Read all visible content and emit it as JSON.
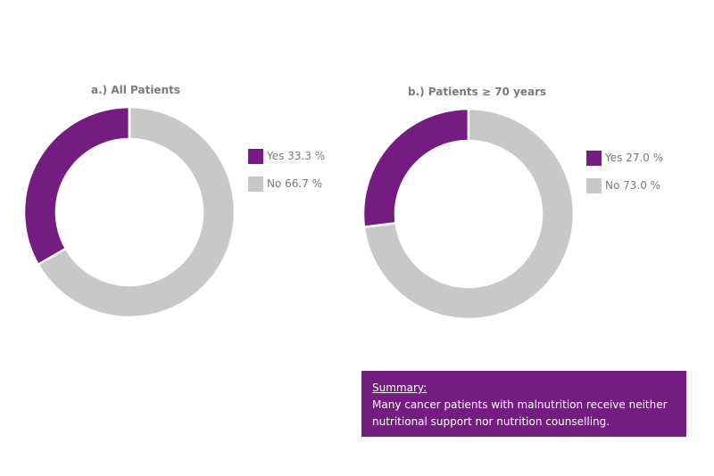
{
  "colors": {
    "yes": "#741c82",
    "no": "#c8c8c8",
    "text": "#7a7a7a"
  },
  "chart_data": [
    {
      "type": "pie",
      "title": "a.) All Patients",
      "categories": [
        "Yes",
        "No"
      ],
      "values": [
        33.3,
        66.7
      ],
      "legend": [
        "Yes 33.3 %",
        "No 66.7 %"
      ],
      "legend_position": "right"
    },
    {
      "type": "pie",
      "title": "b.) Patients ≥ 70 years",
      "categories": [
        "Yes",
        "No"
      ],
      "values": [
        27.0,
        73.0
      ],
      "legend": [
        "Yes 27.0 %",
        "No 73.0 %"
      ],
      "legend_position": "right"
    }
  ],
  "summary": {
    "title": "Summary:",
    "text": "Many cancer patients with malnutrition receive neither nutritional support nor nutrition counselling."
  }
}
